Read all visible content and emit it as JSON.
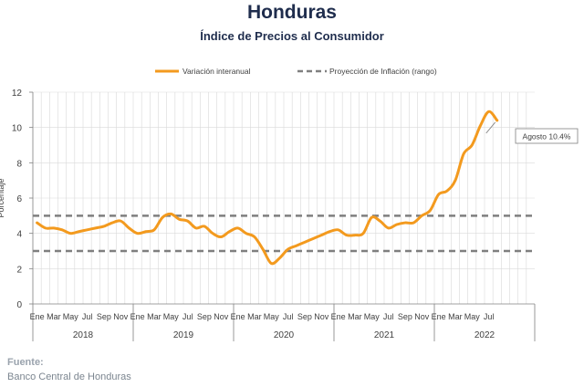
{
  "header": {
    "title": "Honduras",
    "subtitle": "Índice de Precios al Consumidor"
  },
  "footer": {
    "label": "Fuente:",
    "source": "Banco Central de Honduras"
  },
  "colors": {
    "series": "#f39a1e",
    "band": "#7f7f7f",
    "grid": "#d9d9d9",
    "text": "#404040",
    "title": "#1f2d4d"
  },
  "chart_data": {
    "type": "line",
    "ylabel": "Porcentaje",
    "ylim": [
      0,
      12
    ],
    "yticks": [
      0,
      2,
      4,
      6,
      8,
      10,
      12
    ],
    "grid": true,
    "legend_position": "top-center",
    "month_labels": [
      "Ene",
      "Mar",
      "May",
      "Jul",
      "Sep",
      "Nov"
    ],
    "years": [
      "2018",
      "2019",
      "2020",
      "2021",
      "2022"
    ],
    "last_year_month_labels": [
      "Ene",
      "Mar",
      "May",
      "Jul"
    ],
    "series": [
      {
        "name": "Variación interanual",
        "style": "solid",
        "start": "2018-01",
        "values": [
          4.6,
          4.3,
          4.3,
          4.2,
          4.0,
          4.1,
          4.2,
          4.3,
          4.4,
          4.6,
          4.7,
          4.3,
          4.0,
          4.1,
          4.2,
          4.9,
          5.1,
          4.8,
          4.7,
          4.3,
          4.4,
          4.0,
          3.8,
          4.1,
          4.3,
          4.0,
          3.8,
          3.1,
          2.3,
          2.6,
          3.1,
          3.3,
          3.5,
          3.7,
          3.9,
          4.1,
          4.2,
          3.9,
          3.9,
          4.0,
          4.9,
          4.7,
          4.3,
          4.5,
          4.6,
          4.6,
          5.0,
          5.3,
          6.2,
          6.4,
          7.0,
          8.5,
          9.0,
          10.1,
          10.9,
          10.4
        ],
        "annotation": {
          "label": "Agosto 10.4%",
          "point": "2022-08"
        }
      },
      {
        "name": "Proyección de Inflación (rango)",
        "style": "dashed",
        "values": [
          3,
          5
        ]
      }
    ]
  }
}
